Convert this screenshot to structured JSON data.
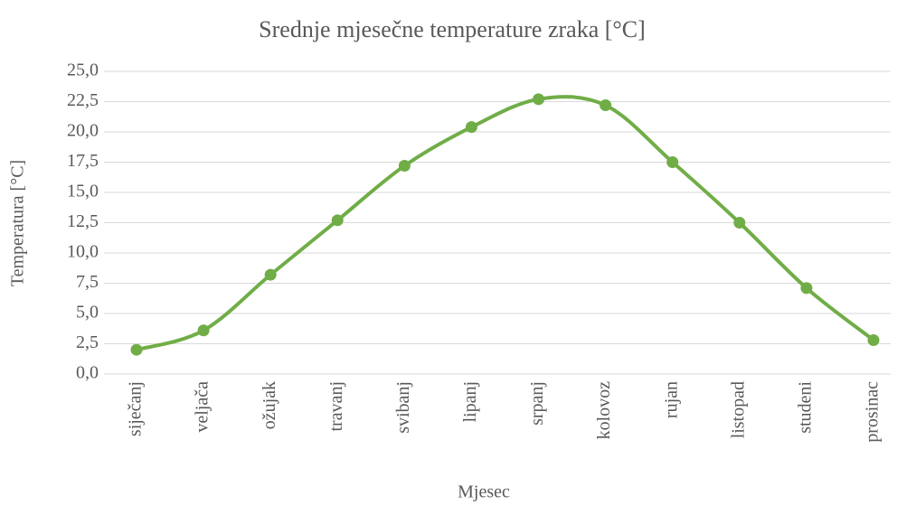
{
  "chart_data": {
    "type": "line",
    "title": "Srednje mjesečne temperature zraka [°C]",
    "x_label": "Mjesec",
    "y_label": "Temperatura [°C]",
    "categories": [
      "siječanj",
      "veljača",
      "ožujak",
      "travanj",
      "svibanj",
      "lipanj",
      "srpanj",
      "kolovoz",
      "rujan",
      "listopad",
      "studeni",
      "prosinac"
    ],
    "values": [
      2.0,
      3.6,
      8.2,
      12.7,
      17.2,
      20.4,
      22.7,
      22.2,
      17.5,
      12.5,
      7.1,
      2.8
    ],
    "color": "#70ad47",
    "smooth": true,
    "grid": true,
    "ylim": [
      0,
      25
    ],
    "yticks": [
      {
        "value": 0,
        "label": "0,0"
      },
      {
        "value": 2.5,
        "label": "2,5"
      },
      {
        "value": 5,
        "label": "5,0"
      },
      {
        "value": 7.5,
        "label": "7,5"
      },
      {
        "value": 10,
        "label": "10,0"
      },
      {
        "value": 12.5,
        "label": "12,5"
      },
      {
        "value": 15,
        "label": "15,0"
      },
      {
        "value": 17.5,
        "label": "17,5"
      },
      {
        "value": 20,
        "label": "20,0"
      },
      {
        "value": 22.5,
        "label": "22,5"
      },
      {
        "value": 25,
        "label": "25,0"
      }
    ]
  }
}
